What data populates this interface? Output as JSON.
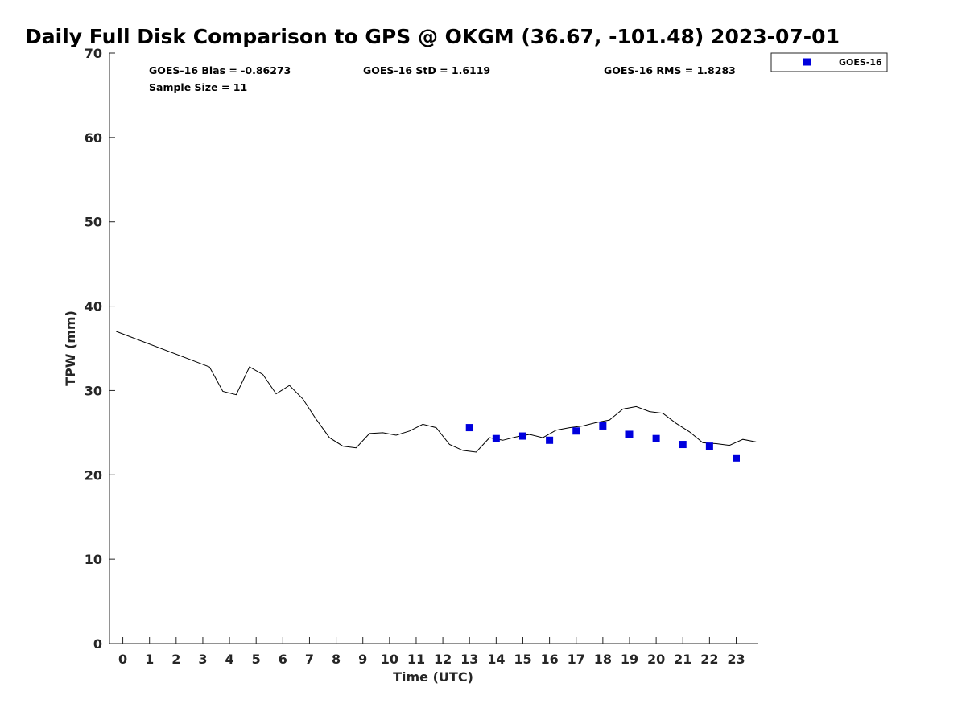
{
  "chart_data": {
    "type": "line",
    "title": "Daily Full Disk Comparison to GPS @ OKGM (36.67, -101.48) 2023-07-01",
    "xlabel": "Time (UTC)",
    "ylabel": "TPW (mm)",
    "xlim": [
      -0.5,
      23.8
    ],
    "ylim": [
      0,
      70
    ],
    "xticks": [
      "0",
      "1",
      "2",
      "3",
      "4",
      "5",
      "6",
      "7",
      "8",
      "9",
      "10",
      "11",
      "12",
      "13",
      "14",
      "15",
      "16",
      "17",
      "18",
      "19",
      "20",
      "21",
      "22",
      "23"
    ],
    "yticks": [
      "0",
      "10",
      "20",
      "30",
      "40",
      "50",
      "60",
      "70"
    ],
    "grid": false,
    "legend_position": "top-right",
    "stats": {
      "bias": "GOES-16 Bias = -0.86273",
      "std": "GOES-16 StD = 1.6119",
      "rms": "GOES-16 RMS = 1.8283",
      "sample": "Sample Size = 11"
    },
    "gps_line": {
      "color": "#000000",
      "x": [
        -0.25,
        3.25,
        3.75,
        4.25,
        4.75,
        5.25,
        5.75,
        6.25,
        6.75,
        7.25,
        7.75,
        8.25,
        8.75,
        9.25,
        9.75,
        10.25,
        10.75,
        11.25,
        11.75,
        12.25,
        12.75,
        13.25,
        13.75,
        14.25,
        14.75,
        15.25,
        15.75,
        16.25,
        16.75,
        17.25,
        17.75,
        18.25,
        18.75,
        19.25,
        19.75,
        20.25,
        20.75,
        21.25,
        21.75,
        22.25,
        22.75,
        23.25,
        23.75
      ],
      "y": [
        37.0,
        32.8,
        29.9,
        29.5,
        32.8,
        31.9,
        29.6,
        30.6,
        29.0,
        26.6,
        24.4,
        23.4,
        23.2,
        24.9,
        25.0,
        24.7,
        25.2,
        26.0,
        25.6,
        23.6,
        22.9,
        22.7,
        24.4,
        24.1,
        24.5,
        24.8,
        24.4,
        25.3,
        25.6,
        25.8,
        26.2,
        26.5,
        27.8,
        28.1,
        27.5,
        27.3,
        26.1,
        25.1,
        23.8,
        23.7,
        23.5,
        24.2,
        23.9
      ]
    },
    "series": [
      {
        "name": "GOES-16",
        "color": "#0000dd",
        "marker": "square",
        "x": [
          13,
          14,
          15,
          16,
          17,
          18,
          19,
          20,
          21,
          22,
          23
        ],
        "y": [
          25.6,
          24.3,
          24.6,
          24.1,
          25.2,
          25.8,
          24.8,
          24.3,
          23.6,
          23.4,
          22.0
        ]
      }
    ]
  }
}
